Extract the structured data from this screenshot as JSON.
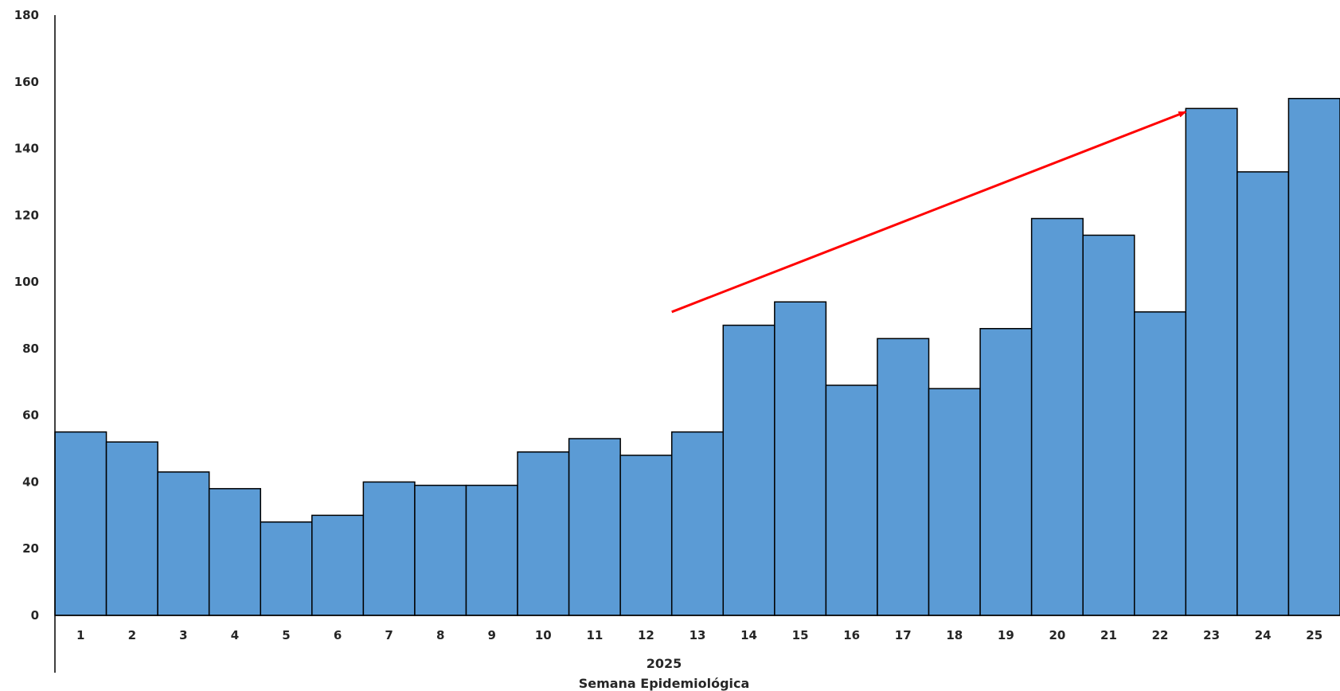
{
  "chart_data": {
    "type": "bar",
    "categories": [
      "1",
      "2",
      "3",
      "4",
      "5",
      "6",
      "7",
      "8",
      "9",
      "10",
      "11",
      "12",
      "13",
      "14",
      "15",
      "16",
      "17",
      "18",
      "19",
      "20",
      "21",
      "22",
      "23",
      "24",
      "25"
    ],
    "values": [
      55,
      52,
      43,
      38,
      28,
      30,
      40,
      39,
      39,
      49,
      53,
      48,
      55,
      87,
      94,
      69,
      83,
      68,
      86,
      119,
      114,
      91,
      152,
      133,
      155
    ],
    "ylim": [
      0,
      180
    ],
    "yticks": [
      0,
      20,
      40,
      60,
      80,
      100,
      120,
      140,
      160,
      180
    ],
    "group_label": "2025",
    "xlabel": "Semana Epidemiológica",
    "ylabel": "",
    "title": "",
    "grid": false,
    "legend": "none",
    "bar_color": "#5b9bd5",
    "bar_edge_color": "#000000",
    "annotation": {
      "type": "trend-arrow",
      "color": "#ff0000",
      "from": {
        "x": 12.5,
        "y": 91
      },
      "to": {
        "x": 22.5,
        "y": 151
      }
    }
  }
}
